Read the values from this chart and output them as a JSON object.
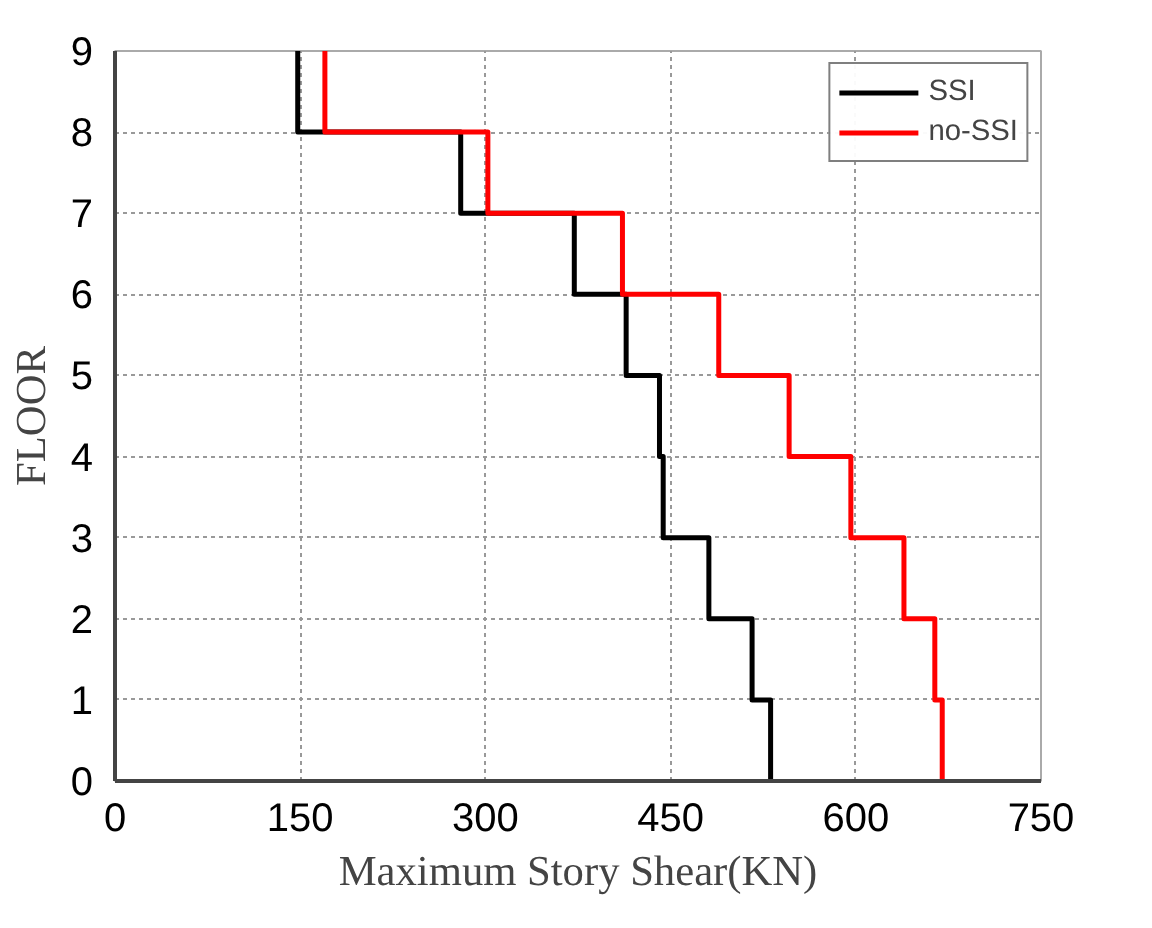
{
  "chart_data": {
    "type": "step",
    "orientation": "horizontal",
    "xlabel": "Maximum Story Shear(KN)",
    "ylabel": "FLOOR",
    "x": [
      0,
      1,
      2,
      3,
      4,
      5,
      6,
      7,
      8,
      9
    ],
    "series": [
      {
        "name": "SSI",
        "color": "#000000",
        "values": [
          531,
          516,
          481,
          444,
          441,
          414,
          372,
          280,
          148,
          148
        ]
      },
      {
        "name": "no-SSI",
        "color": "#ff0000",
        "values": [
          670,
          664,
          639,
          596,
          546,
          489,
          411,
          302,
          170,
          170
        ]
      }
    ],
    "xlim": [
      0,
      750
    ],
    "xticks": [
      0,
      150,
      300,
      450,
      600,
      750
    ],
    "ylim": [
      0,
      9
    ],
    "yticks": [
      0,
      1,
      2,
      3,
      4,
      5,
      6,
      7,
      8,
      9
    ],
    "grid": true,
    "legend": "top right",
    "line_style": "solid"
  }
}
